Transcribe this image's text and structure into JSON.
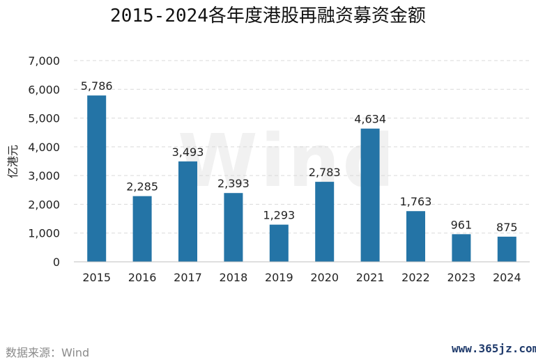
{
  "chart_data": {
    "type": "bar",
    "title": "2015-2024各年度港股再融资募资金额",
    "ylabel": "亿港元",
    "xlabel": "",
    "categories": [
      "2015",
      "2016",
      "2017",
      "2018",
      "2019",
      "2020",
      "2021",
      "2022",
      "2023",
      "2024"
    ],
    "values": [
      5786,
      2285,
      3493,
      2393,
      1293,
      2783,
      4634,
      1763,
      961,
      875
    ],
    "value_labels": [
      "5,786",
      "2,285",
      "3,493",
      "2,393",
      "1,293",
      "2,783",
      "4,634",
      "1,763",
      "961",
      "875"
    ],
    "ylim": [
      0,
      7000
    ],
    "yticks": [
      0,
      1000,
      2000,
      3000,
      4000,
      5000,
      6000,
      7000
    ],
    "ytick_labels": [
      "0",
      "1,000",
      "2,000",
      "3,000",
      "4,000",
      "5,000",
      "6,000",
      "7,000"
    ],
    "grid": true,
    "bar_color": "#2474a6"
  },
  "footer": {
    "source": "数据来源：Wind",
    "site": "www.365jz.com"
  },
  "watermark": "Wind"
}
